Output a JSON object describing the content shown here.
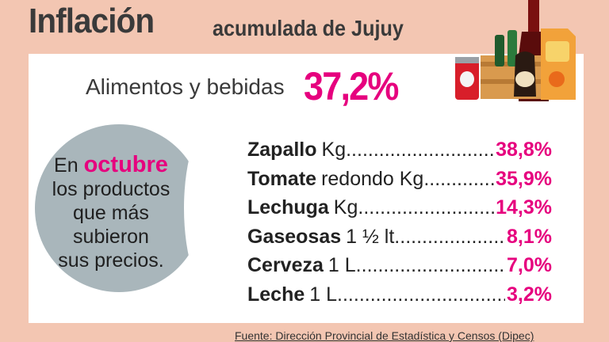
{
  "header": {
    "title": "Inflación",
    "subtitle": "acumulada de Jujuy"
  },
  "category": {
    "label": "Alimentos y bebidas",
    "value": "37,2%"
  },
  "callout": {
    "prefix": "En",
    "highlight": "octubre",
    "rest_line1": "los productos",
    "rest_line2": "que más",
    "rest_line3": "subieron",
    "rest_line4": "sus precios."
  },
  "products": [
    {
      "name": "Zapallo",
      "unit": "Kg",
      "value": "38,8%"
    },
    {
      "name": "Tomate",
      "unit": "redondo Kg",
      "value": "35,9%"
    },
    {
      "name": "Lechuga",
      "unit": "Kg",
      "value": "14,3%"
    },
    {
      "name": "Gaseosas",
      "unit": "1 ½ lt",
      "value": "8,1%"
    },
    {
      "name": "Cerveza",
      "unit": "1  L",
      "value": "7,0%"
    },
    {
      "name": "Leche",
      "unit": "1 L",
      "value": "3,2%"
    }
  ],
  "source": "Fuente: Dirección Provincial de Estadística y Censos  (Dipec)",
  "colors": {
    "background": "#f3c6b2",
    "accent": "#e6007e",
    "circle": "#a9b6bb"
  },
  "icons": [
    "grocery-products-icon"
  ]
}
